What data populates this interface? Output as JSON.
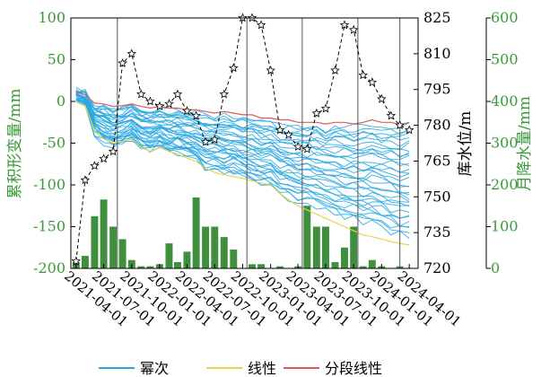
{
  "chart_data": {
    "type": "line",
    "ylabel_left": "累积形变量/mm",
    "ylabel_mid": "库水位/m",
    "ylabel_right": "月降水量/mm",
    "ylim_left": [
      -200,
      100
    ],
    "ylim_mid": [
      720,
      825
    ],
    "ylim_right": [
      0,
      600
    ],
    "yticks_left": [
      100,
      50,
      0,
      -50,
      -100,
      -150,
      -200
    ],
    "yticks_mid": [
      825,
      810,
      795,
      780,
      765,
      750,
      735,
      720
    ],
    "yticks_right": [
      600,
      500,
      400,
      300,
      200,
      100,
      0
    ],
    "x_start": "2021-03-15",
    "x_end": "2024-04-30",
    "xticks": [
      "2021-04-01",
      "2021-07-01",
      "2021-10-01",
      "2022-01-01",
      "2022-04-01",
      "2022-07-01",
      "2022-10-01",
      "2023-01-01",
      "2023-04-01",
      "2023-07-01",
      "2023-10-01",
      "2024-01-01",
      "2024-04-01"
    ],
    "vlines": [
      "2021-08-15",
      "2022-10-15",
      "2023-04-15",
      "2023-10-15",
      "2024-03-01"
    ],
    "legend": [
      {
        "name": "幂次",
        "color": "#29a8e0"
      },
      {
        "name": "线性",
        "color": "#e8d44a"
      },
      {
        "name": "分段线性",
        "color": "#e05a5a"
      }
    ],
    "colors": {
      "deformation": "#29a8e0",
      "linear": "#e8d44a",
      "piecewise": "#e05a5a",
      "bars": "#3f8f3f",
      "water": "#000000",
      "axis_green": "#3a9a3a"
    },
    "precipitation": {
      "dates": [
        "2021-04-01",
        "2021-05-01",
        "2021-06-01",
        "2021-07-01",
        "2021-08-01",
        "2021-09-01",
        "2021-10-01",
        "2021-11-01",
        "2021-12-01",
        "2022-01-01",
        "2022-02-01",
        "2022-03-01",
        "2022-04-01",
        "2022-05-01",
        "2022-06-01",
        "2022-07-01",
        "2022-08-01",
        "2022-09-01",
        "2022-10-01",
        "2022-11-01",
        "2022-12-01",
        "2023-01-01",
        "2023-02-01",
        "2023-03-01",
        "2023-04-01",
        "2023-05-01",
        "2023-06-01",
        "2023-07-01",
        "2023-08-01",
        "2023-09-01",
        "2023-10-01",
        "2023-11-01",
        "2023-12-01",
        "2024-01-01",
        "2024-02-01",
        "2024-03-01",
        "2024-04-01"
      ],
      "values": [
        15,
        30,
        125,
        165,
        100,
        70,
        20,
        5,
        5,
        10,
        60,
        15,
        40,
        170,
        100,
        100,
        75,
        45,
        0,
        10,
        10,
        0,
        5,
        0,
        5,
        150,
        100,
        100,
        15,
        50,
        100,
        5,
        20,
        5,
        0,
        5,
        0
      ]
    },
    "water_level": {
      "dates": [
        "2021-04-01",
        "2021-05-01",
        "2021-06-01",
        "2021-07-01",
        "2021-08-01",
        "2021-09-01",
        "2021-10-01",
        "2021-11-01",
        "2021-12-01",
        "2022-01-01",
        "2022-02-01",
        "2022-03-01",
        "2022-04-01",
        "2022-05-01",
        "2022-06-01",
        "2022-07-01",
        "2022-08-01",
        "2022-09-01",
        "2022-10-01",
        "2022-11-01",
        "2022-12-01",
        "2023-01-01",
        "2023-02-01",
        "2023-03-01",
        "2023-04-01",
        "2023-05-01",
        "2023-06-01",
        "2023-07-01",
        "2023-08-01",
        "2023-09-01",
        "2023-10-01",
        "2023-11-01",
        "2023-12-01",
        "2024-01-01",
        "2024-02-01",
        "2024-03-01",
        "2024-04-01"
      ],
      "values": [
        723,
        757,
        763,
        766,
        769,
        806,
        810,
        793,
        790,
        788,
        789,
        793,
        786,
        784,
        773,
        774,
        793,
        804,
        825,
        825,
        822,
        803,
        778,
        776,
        771,
        770,
        785,
        787,
        803,
        822,
        820,
        801,
        798,
        791,
        784,
        780,
        778
      ]
    },
    "deformation_summary": {
      "dates": [
        "2021-04-01",
        "2021-05-01",
        "2021-06-01",
        "2021-07-01",
        "2021-08-01",
        "2021-09-01",
        "2021-10-01",
        "2021-11-01",
        "2021-12-01",
        "2022-01-01",
        "2022-02-01",
        "2022-03-01",
        "2022-04-01",
        "2022-05-01",
        "2022-06-01",
        "2022-07-01",
        "2022-08-01",
        "2022-09-01",
        "2022-10-01",
        "2022-11-01",
        "2022-12-01",
        "2023-01-01",
        "2023-02-01",
        "2023-03-01",
        "2023-04-01",
        "2023-05-01",
        "2023-06-01",
        "2023-07-01",
        "2023-08-01",
        "2023-09-01",
        "2023-10-01",
        "2023-11-01",
        "2023-12-01",
        "2024-01-01",
        "2024-02-01",
        "2024-03-01",
        "2024-04-01"
      ],
      "upper": [
        15,
        10,
        -5,
        -5,
        -10,
        -8,
        -5,
        -10,
        -12,
        -10,
        -12,
        -13,
        -15,
        -15,
        -18,
        -20,
        -18,
        -20,
        -22,
        -22,
        -25,
        -25,
        -28,
        -28,
        -30,
        -30,
        -30,
        -32,
        -30,
        -30,
        -32,
        -30,
        -28,
        -30,
        -30,
        -32,
        -30
      ],
      "lower": [
        0,
        -5,
        -40,
        -50,
        -55,
        -50,
        -45,
        -55,
        -60,
        -55,
        -60,
        -62,
        -65,
        -70,
        -80,
        -80,
        -85,
        -85,
        -90,
        -95,
        -100,
        -100,
        -110,
        -115,
        -120,
        -120,
        -125,
        -130,
        -135,
        -140,
        -140,
        -145,
        -145,
        -150,
        -155,
        -160,
        -160
      ],
      "linear_lower": [
        0,
        -5,
        -35,
        -45,
        -50,
        -48,
        -45,
        -55,
        -60,
        -55,
        -60,
        -63,
        -68,
        -72,
        -80,
        -85,
        -88,
        -90,
        -92,
        -95,
        -98,
        -100,
        -110,
        -118,
        -125,
        -130,
        -135,
        -140,
        -145,
        -150,
        -155,
        -160,
        -162,
        -165,
        -168,
        -170,
        -172
      ],
      "piecewise_upper": [
        12,
        8,
        -2,
        -3,
        -6,
        -5,
        -3,
        -6,
        -8,
        -6,
        -8,
        -8,
        -10,
        -10,
        -12,
        -14,
        -12,
        -14,
        -16,
        -16,
        -20,
        -20,
        -22,
        -22,
        -25,
        -25,
        -25,
        -27,
        -25,
        -25,
        -27,
        -25,
        -22,
        -25,
        -25,
        -28,
        -25
      ]
    }
  }
}
